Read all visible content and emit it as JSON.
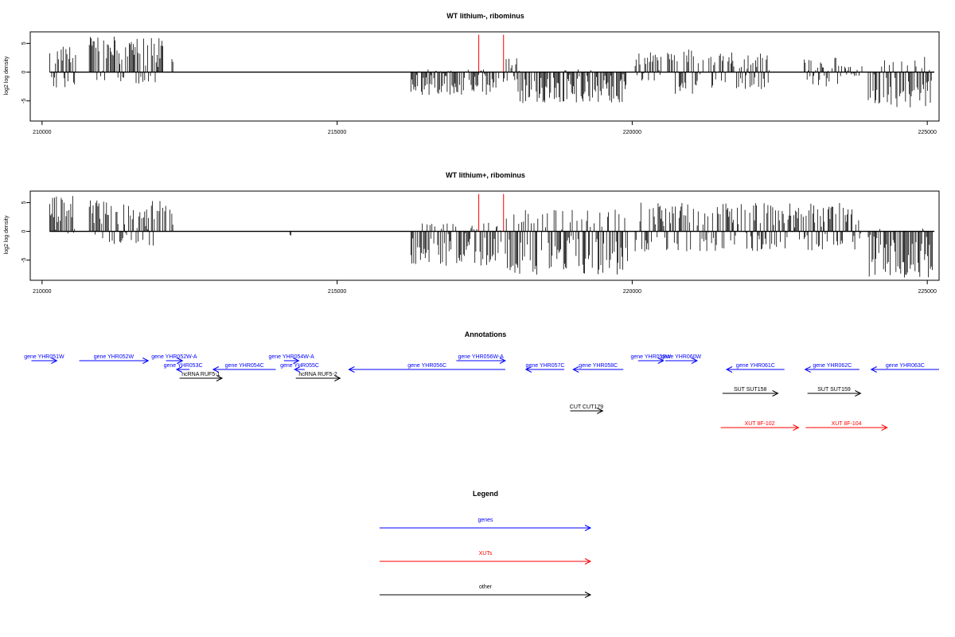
{
  "chart_data": [
    {
      "type": "bar",
      "title": "WT lithium-, ribominus",
      "ylabel": "log2 log density",
      "xlim": [
        209800,
        225200
      ],
      "ylim": [
        -8.5,
        7
      ],
      "x_ticks": [
        210000,
        215000,
        220000,
        225000
      ],
      "x_tick_labels": [
        "210000",
        "215000",
        "220000",
        "225000"
      ],
      "y_ticks": [
        5,
        0,
        -5
      ],
      "y_tick_labels": [
        "5",
        "0",
        "-5"
      ],
      "highlight_color": "#ff0000",
      "highlight_x": [
        217400,
        217820
      ],
      "highlight_value": 6.5,
      "bar_color": "#000000",
      "segments": [
        {
          "start": 210130,
          "end": 210580,
          "min": -3,
          "max": 4.5
        },
        {
          "start": 210800,
          "end": 212050,
          "min": -2,
          "max": 6.3
        },
        {
          "start": 212200,
          "end": 212230,
          "min": 0,
          "max": 3.3
        },
        {
          "start": 216250,
          "end": 217750,
          "min": -4,
          "max": 0.5
        },
        {
          "start": 217800,
          "end": 218050,
          "min": -2,
          "max": 2.5
        },
        {
          "start": 218050,
          "end": 219900,
          "min": -5.5,
          "max": 0.5
        },
        {
          "start": 220050,
          "end": 220500,
          "min": -1.5,
          "max": 3.5
        },
        {
          "start": 220600,
          "end": 221200,
          "min": -4,
          "max": 4.2
        },
        {
          "start": 221300,
          "end": 222350,
          "min": -3,
          "max": 3.5
        },
        {
          "start": 222900,
          "end": 223550,
          "min": -2.5,
          "max": 2.5
        },
        {
          "start": 223600,
          "end": 223900,
          "min": -0.8,
          "max": 1.2
        },
        {
          "start": 224000,
          "end": 225100,
          "min": -6.5,
          "max": 2.8
        }
      ]
    },
    {
      "type": "bar",
      "title": "WT lithium+, ribominus",
      "ylabel": "log2 log density",
      "xlim": [
        209800,
        225200
      ],
      "ylim": [
        -8.5,
        7
      ],
      "x_ticks": [
        210000,
        215000,
        220000,
        225000
      ],
      "x_tick_labels": [
        "210000",
        "215000",
        "220000",
        "225000"
      ],
      "y_ticks": [
        5,
        0,
        -5
      ],
      "y_tick_labels": [
        "5",
        "0",
        "-5"
      ],
      "highlight_color": "#ff0000",
      "highlight_x": [
        217400,
        217820
      ],
      "highlight_value": 6.5,
      "bar_color": "#000000",
      "segments": [
        {
          "start": 210130,
          "end": 210580,
          "min": -0.5,
          "max": 6.3
        },
        {
          "start": 210800,
          "end": 212100,
          "min": -2.5,
          "max": 5.5
        },
        {
          "start": 212150,
          "end": 212220,
          "min": -1,
          "max": 4.6
        },
        {
          "start": 214200,
          "end": 214230,
          "min": -0.8,
          "max": 0
        },
        {
          "start": 216250,
          "end": 217380,
          "min": -6,
          "max": 1.5
        },
        {
          "start": 217420,
          "end": 217780,
          "min": -6,
          "max": 1.5
        },
        {
          "start": 217850,
          "end": 219950,
          "min": -7.5,
          "max": 3.8
        },
        {
          "start": 220050,
          "end": 223900,
          "min": -3.5,
          "max": 5
        },
        {
          "start": 224000,
          "end": 225100,
          "min": -8.2,
          "max": 0.5
        }
      ]
    }
  ],
  "annotations": {
    "title": "Annotations",
    "genome_xlim": [
      209800,
      225200
    ],
    "features": [
      {
        "label": "gene YHR051W",
        "category": "gene",
        "strand": "+",
        "start": 209820,
        "end": 210250,
        "row": 0
      },
      {
        "label": "gene YHR052W",
        "category": "gene",
        "strand": "+",
        "start": 210630,
        "end": 211800,
        "row": 0
      },
      {
        "label": "gene YHR052W-A",
        "category": "gene",
        "strand": "+",
        "start": 212100,
        "end": 212380,
        "row": 0
      },
      {
        "label": "gene YHR053C",
        "category": "gene",
        "strand": "-",
        "start": 212280,
        "end": 212500,
        "row": 1
      },
      {
        "label": "gene YHR054C",
        "category": "gene",
        "strand": "-",
        "start": 212900,
        "end": 213960,
        "row": 1
      },
      {
        "label": "gene YHR054W-A",
        "category": "gene",
        "strand": "+",
        "start": 214100,
        "end": 214350,
        "row": 0
      },
      {
        "label": "gene YHR055C",
        "category": "gene",
        "strand": "-",
        "start": 214280,
        "end": 214450,
        "row": 1
      },
      {
        "label": "gene YHR056C",
        "category": "gene",
        "strand": "-",
        "start": 215200,
        "end": 217850,
        "row": 1
      },
      {
        "label": "gene YHR056W-A",
        "category": "gene",
        "strand": "+",
        "start": 217020,
        "end": 217850,
        "row": 0
      },
      {
        "label": "gene YHR057C",
        "category": "gene",
        "strand": "-",
        "start": 218200,
        "end": 218850,
        "row": 1
      },
      {
        "label": "gene YHR058C",
        "category": "gene",
        "strand": "-",
        "start": 219000,
        "end": 219850,
        "row": 1
      },
      {
        "label": "gene YHR059W",
        "category": "gene",
        "strand": "+",
        "start": 220100,
        "end": 220530,
        "row": 0
      },
      {
        "label": "gene YHR060W",
        "category": "gene",
        "strand": "+",
        "start": 220560,
        "end": 221100,
        "row": 0
      },
      {
        "label": "gene YHR061C",
        "category": "gene",
        "strand": "-",
        "start": 221600,
        "end": 222580,
        "row": 1
      },
      {
        "label": "gene YHR062C",
        "category": "gene",
        "strand": "-",
        "start": 222930,
        "end": 223850,
        "row": 1
      },
      {
        "label": "gene YHR063C",
        "category": "gene",
        "strand": "-",
        "start": 224050,
        "end": 225200,
        "row": 1
      },
      {
        "label": "ncRNA RUF5-1",
        "category": "other",
        "strand": "+",
        "start": 212330,
        "end": 213050,
        "row": 2
      },
      {
        "label": "ncRNA RUF5-2",
        "category": "other",
        "strand": "+",
        "start": 214300,
        "end": 215050,
        "row": 2
      },
      {
        "label": "SUT SUT158",
        "category": "other",
        "strand": "+",
        "start": 221530,
        "end": 222470,
        "row": 3
      },
      {
        "label": "SUT SUT159",
        "category": "other",
        "strand": "+",
        "start": 222970,
        "end": 223870,
        "row": 3
      },
      {
        "label": "CUT CUT179",
        "category": "other",
        "strand": "+",
        "start": 218950,
        "end": 219500,
        "row": 4
      },
      {
        "label": "XUT 8F-102",
        "category": "xut",
        "strand": "+",
        "start": 221500,
        "end": 222820,
        "row": 5
      },
      {
        "label": "XUT 8F-104",
        "category": "xut",
        "strand": "+",
        "start": 222940,
        "end": 224320,
        "row": 5
      }
    ]
  },
  "legend": {
    "title": "Legend",
    "items": [
      {
        "label": "genes",
        "color": "#0000ff"
      },
      {
        "label": "XUTs",
        "color": "#ff0000"
      },
      {
        "label": "other",
        "color": "#000000"
      }
    ]
  },
  "colors": {
    "gene": "#0000ff",
    "xut": "#ff0000",
    "other": "#000000"
  }
}
